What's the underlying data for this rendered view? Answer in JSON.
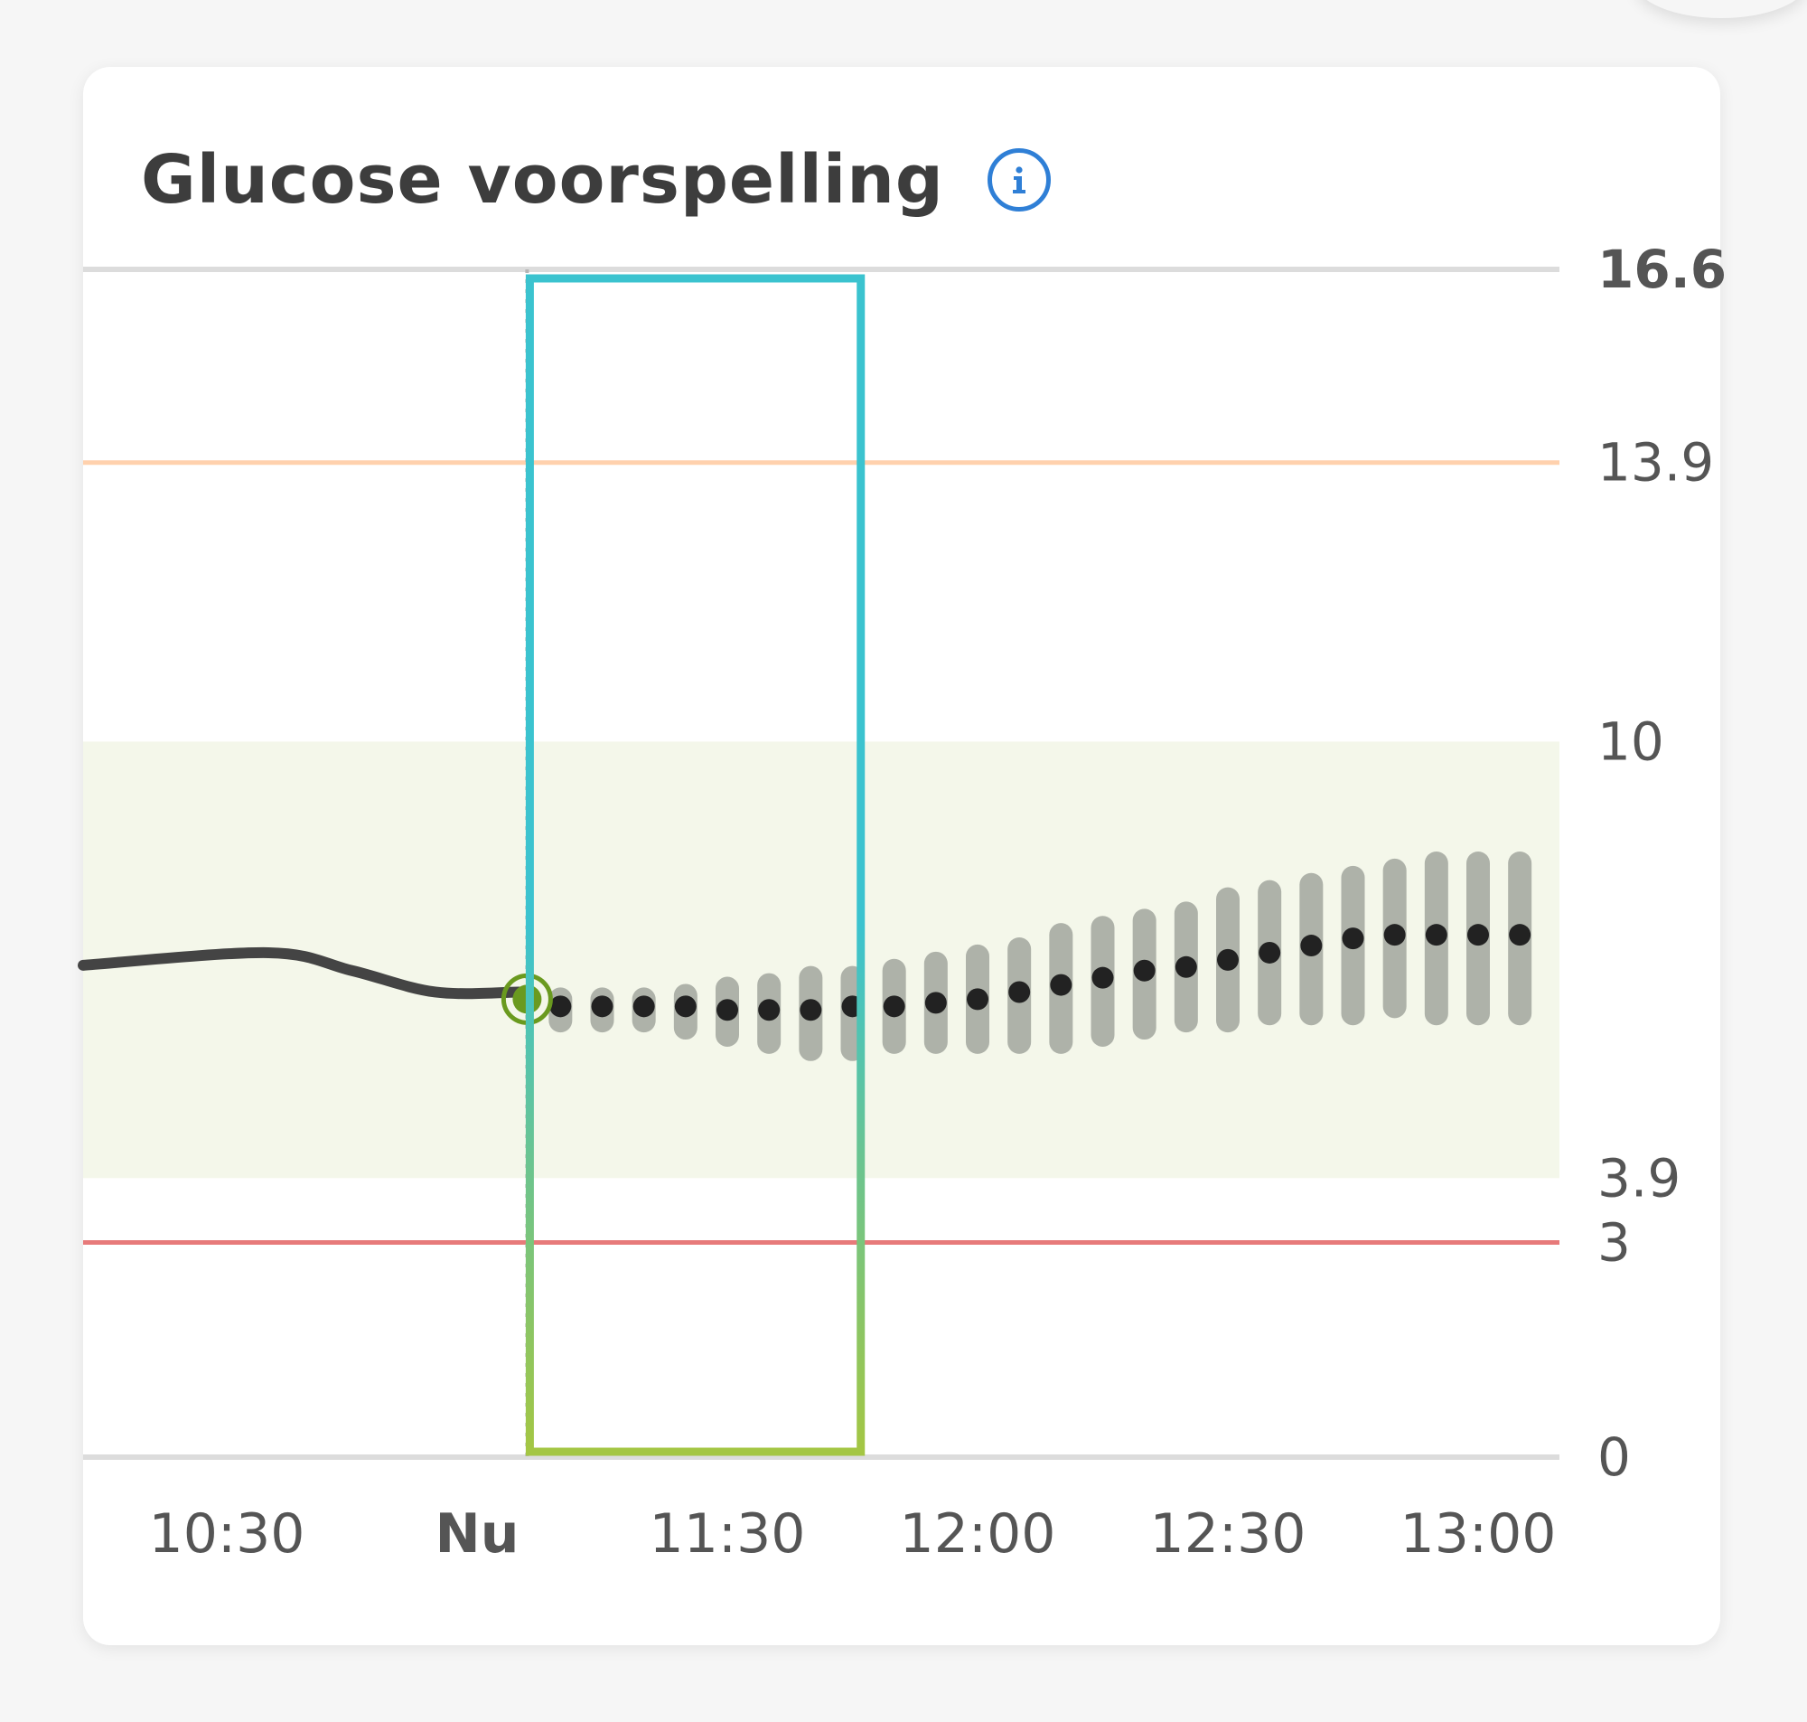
{
  "card": {
    "title": "Glucose voorspelling",
    "info_icon": "info-icon"
  },
  "colors": {
    "gridline": "#dcdcdc",
    "high_threshold": "#ffd1ad",
    "low_threshold": "#e77a7a",
    "target_band": "#f4f7ea",
    "history_line": "#444444",
    "current_marker": "#6a9a1f",
    "prediction_dot": "#222222",
    "prediction_range": "#a7aba3",
    "selection_top": "#3bc3cf",
    "selection_bottom": "#a4c643",
    "info": "#2f7fd6"
  },
  "chart_data": {
    "type": "line",
    "y_ticks": [
      "16.6",
      "13.9",
      "10",
      "3.9",
      "3",
      "0"
    ],
    "x_ticks": [
      "10:30",
      "Nu",
      "11:30",
      "12:00",
      "12:30",
      "13:00"
    ],
    "ylim": [
      0,
      16.6
    ],
    "target_range": [
      3.9,
      10
    ],
    "high_threshold": 13.9,
    "low_threshold": 3,
    "history": {
      "x": [
        "10:25",
        "10:35",
        "10:45",
        "10:55",
        "11:05"
      ],
      "y": [
        6.95,
        7.05,
        6.8,
        6.5,
        6.5
      ]
    },
    "current": {
      "x": "11:06",
      "y": 6.4
    },
    "forecast": {
      "x": [
        "11:10",
        "11:15",
        "11:20",
        "11:25",
        "11:30",
        "11:35",
        "11:40",
        "11:45",
        "11:50",
        "11:55",
        "12:00",
        "12:05",
        "12:10",
        "12:15",
        "12:20",
        "12:25",
        "12:30",
        "12:35",
        "12:40",
        "12:45",
        "12:50",
        "12:55",
        "13:00",
        "13:05"
      ],
      "y": [
        6.3,
        6.3,
        6.3,
        6.3,
        6.25,
        6.25,
        6.25,
        6.3,
        6.3,
        6.35,
        6.4,
        6.5,
        6.6,
        6.7,
        6.8,
        6.85,
        6.95,
        7.05,
        7.15,
        7.25,
        7.3,
        7.3,
        7.3,
        7.3
      ],
      "low": [
        6.1,
        6.1,
        6.1,
        6.0,
        5.9,
        5.8,
        5.7,
        5.7,
        5.8,
        5.8,
        5.8,
        5.8,
        5.8,
        5.9,
        6.0,
        6.1,
        6.1,
        6.2,
        6.2,
        6.2,
        6.3,
        6.2,
        6.2,
        6.2
      ],
      "high": [
        6.4,
        6.4,
        6.4,
        6.45,
        6.55,
        6.6,
        6.7,
        6.7,
        6.8,
        6.9,
        7.0,
        7.1,
        7.3,
        7.4,
        7.5,
        7.6,
        7.8,
        7.9,
        8.0,
        8.1,
        8.2,
        8.3,
        8.3,
        8.3
      ]
    },
    "now_marker": "11:06",
    "selection_window": {
      "start": "11:06",
      "end": "11:46"
    }
  }
}
